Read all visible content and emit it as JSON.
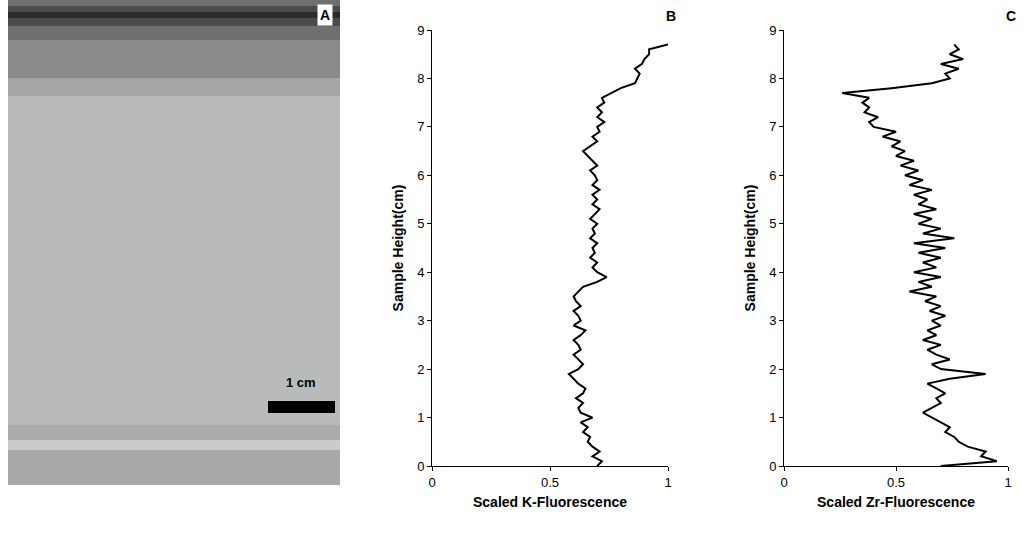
{
  "chart_data": [
    {
      "type": "image",
      "panel": "A",
      "annotations": [
        "1 cm"
      ]
    },
    {
      "type": "line",
      "panel": "B",
      "x_label": "Scaled K-Fluorescence",
      "y_label": "Sample Height(cm)",
      "color": "#000000",
      "grid": false,
      "xlim": [
        0,
        1
      ],
      "xticks": [
        0,
        0.5,
        1
      ],
      "ylim": [
        0,
        9
      ],
      "yticks": [
        0,
        1,
        2,
        3,
        4,
        5,
        6,
        7,
        8,
        9
      ],
      "y": [
        0,
        0.1,
        0.2,
        0.3,
        0.4,
        0.5,
        0.6,
        0.7,
        0.8,
        0.9,
        1.0,
        1.1,
        1.2,
        1.3,
        1.4,
        1.5,
        1.6,
        1.7,
        1.8,
        1.9,
        2.0,
        2.1,
        2.2,
        2.3,
        2.4,
        2.5,
        2.6,
        2.7,
        2.8,
        2.9,
        3.0,
        3.1,
        3.2,
        3.3,
        3.4,
        3.5,
        3.6,
        3.7,
        3.8,
        3.9,
        4.0,
        4.1,
        4.2,
        4.3,
        4.4,
        4.5,
        4.6,
        4.7,
        4.8,
        4.9,
        5.0,
        5.1,
        5.2,
        5.3,
        5.4,
        5.5,
        5.6,
        5.7,
        5.8,
        5.9,
        6.0,
        6.1,
        6.2,
        6.3,
        6.4,
        6.5,
        6.6,
        6.7,
        6.8,
        6.9,
        7.0,
        7.1,
        7.2,
        7.3,
        7.4,
        7.5,
        7.6,
        7.7,
        7.8,
        7.9,
        8.0,
        8.1,
        8.2,
        8.3,
        8.4,
        8.5,
        8.6,
        8.7
      ],
      "x": [
        0.7,
        0.72,
        0.68,
        0.71,
        0.68,
        0.66,
        0.67,
        0.64,
        0.66,
        0.63,
        0.68,
        0.63,
        0.62,
        0.64,
        0.61,
        0.64,
        0.65,
        0.62,
        0.6,
        0.58,
        0.62,
        0.64,
        0.62,
        0.6,
        0.63,
        0.62,
        0.6,
        0.63,
        0.65,
        0.6,
        0.63,
        0.62,
        0.6,
        0.63,
        0.61,
        0.6,
        0.62,
        0.64,
        0.7,
        0.74,
        0.7,
        0.68,
        0.7,
        0.67,
        0.69,
        0.68,
        0.7,
        0.67,
        0.69,
        0.68,
        0.7,
        0.67,
        0.69,
        0.71,
        0.68,
        0.7,
        0.68,
        0.71,
        0.68,
        0.7,
        0.69,
        0.67,
        0.7,
        0.68,
        0.66,
        0.64,
        0.67,
        0.7,
        0.68,
        0.71,
        0.7,
        0.73,
        0.7,
        0.72,
        0.7,
        0.73,
        0.72,
        0.76,
        0.8,
        0.86,
        0.87,
        0.88,
        0.86,
        0.89,
        0.9,
        0.92,
        0.92,
        1.0
      ]
    },
    {
      "type": "line",
      "panel": "C",
      "x_label": "Scaled Zr-Fluorescence",
      "y_label": "Sample Height(cm)",
      "color": "#000000",
      "grid": false,
      "xlim": [
        0,
        1
      ],
      "xticks": [
        0,
        0.5,
        1
      ],
      "ylim": [
        0,
        9
      ],
      "yticks": [
        0,
        1,
        2,
        3,
        4,
        5,
        6,
        7,
        8,
        9
      ],
      "y": [
        0,
        0.1,
        0.2,
        0.3,
        0.4,
        0.5,
        0.6,
        0.7,
        0.8,
        0.9,
        1.0,
        1.1,
        1.2,
        1.3,
        1.4,
        1.5,
        1.6,
        1.7,
        1.8,
        1.9,
        2.0,
        2.1,
        2.2,
        2.3,
        2.4,
        2.5,
        2.6,
        2.7,
        2.8,
        2.9,
        3.0,
        3.1,
        3.2,
        3.3,
        3.4,
        3.5,
        3.6,
        3.7,
        3.8,
        3.9,
        4.0,
        4.1,
        4.2,
        4.3,
        4.4,
        4.5,
        4.6,
        4.7,
        4.8,
        4.9,
        5.0,
        5.1,
        5.2,
        5.3,
        5.4,
        5.5,
        5.6,
        5.7,
        5.8,
        5.9,
        6.0,
        6.1,
        6.2,
        6.3,
        6.4,
        6.5,
        6.6,
        6.7,
        6.8,
        6.9,
        7.0,
        7.1,
        7.2,
        7.3,
        7.4,
        7.5,
        7.6,
        7.7,
        7.8,
        7.9,
        8.0,
        8.1,
        8.2,
        8.3,
        8.4,
        8.5,
        8.6,
        8.7
      ],
      "x": [
        0.7,
        0.95,
        0.88,
        0.9,
        0.82,
        0.78,
        0.76,
        0.72,
        0.74,
        0.7,
        0.66,
        0.62,
        0.66,
        0.7,
        0.68,
        0.72,
        0.68,
        0.64,
        0.74,
        0.9,
        0.7,
        0.66,
        0.74,
        0.68,
        0.64,
        0.7,
        0.62,
        0.68,
        0.64,
        0.7,
        0.66,
        0.72,
        0.65,
        0.7,
        0.63,
        0.68,
        0.56,
        0.66,
        0.6,
        0.7,
        0.58,
        0.68,
        0.62,
        0.7,
        0.6,
        0.72,
        0.58,
        0.76,
        0.62,
        0.7,
        0.6,
        0.66,
        0.58,
        0.68,
        0.6,
        0.64,
        0.58,
        0.66,
        0.56,
        0.62,
        0.54,
        0.6,
        0.52,
        0.58,
        0.5,
        0.54,
        0.48,
        0.52,
        0.44,
        0.5,
        0.4,
        0.38,
        0.42,
        0.36,
        0.38,
        0.35,
        0.38,
        0.26,
        0.48,
        0.66,
        0.74,
        0.72,
        0.78,
        0.7,
        0.8,
        0.74,
        0.78,
        0.76
      ]
    }
  ]
}
